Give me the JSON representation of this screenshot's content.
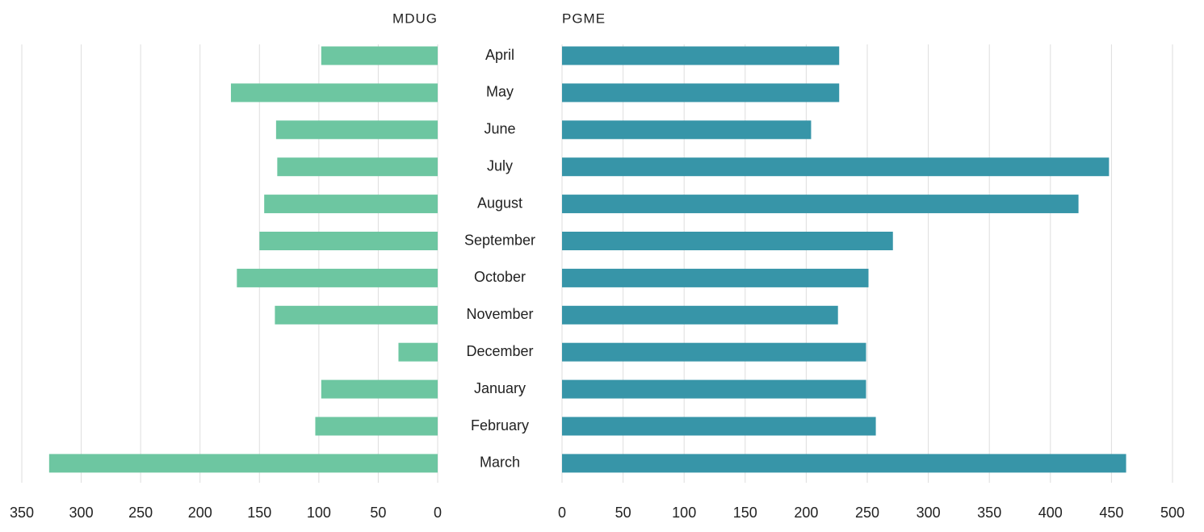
{
  "chart_data": [
    {
      "type": "bar",
      "title": "MDUG",
      "categories": [
        "April",
        "May",
        "June",
        "July",
        "August",
        "September",
        "October",
        "November",
        "December",
        "January",
        "February",
        "March"
      ],
      "values": [
        98,
        174,
        136,
        135,
        146,
        150,
        169,
        137,
        33,
        98,
        103,
        327
      ],
      "color": "#6dc6a1",
      "xlim": [
        0,
        350
      ],
      "xticks": [
        0,
        50,
        100,
        150,
        200,
        250,
        300,
        350
      ],
      "grid": true
    },
    {
      "type": "bar",
      "title": "PGME",
      "values": [
        227,
        227,
        204,
        448,
        423,
        271,
        251,
        226,
        249,
        249,
        257,
        462
      ],
      "color": "#3795a8",
      "xlim": [
        0,
        500
      ],
      "xticks": [
        0,
        50,
        100,
        150,
        200,
        250,
        300,
        350,
        400,
        450,
        500
      ],
      "grid": true
    }
  ]
}
